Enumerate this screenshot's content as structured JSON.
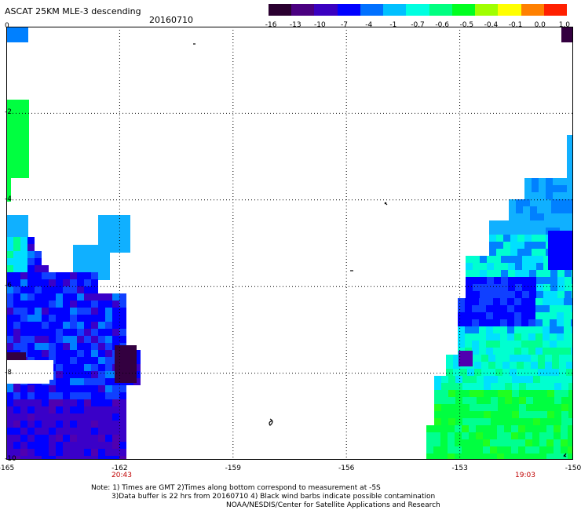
{
  "header": {
    "title": "ASCAT 25KM MLE-3 descending",
    "date": "20160710"
  },
  "colorbar": {
    "labels": [
      "-16",
      "-13",
      "-10",
      "-7",
      "-4",
      "-1",
      "-0.7",
      "-0.6",
      "-0.5",
      "-0.4",
      "-0.1",
      "0.0",
      "1.0"
    ],
    "colors": [
      "#2a0030",
      "#4a0080",
      "#3a00c0",
      "#0000ff",
      "#0070ff",
      "#00c0ff",
      "#00ffe0",
      "#00ff80",
      "#00ff20",
      "#a0ff00",
      "#ffff00",
      "#ff8000",
      "#ff2000"
    ]
  },
  "chart_data": {
    "type": "heatmap",
    "title": "ASCAT 25KM MLE-3 descending",
    "x_ticks": [
      "-165",
      "-162",
      "-159",
      "-156",
      "-153",
      "-150"
    ],
    "y_ticks": [
      "0",
      "-2",
      "-4",
      "-6",
      "-8",
      "-10"
    ],
    "xlim": [
      -165,
      -150
    ],
    "ylim": [
      -10,
      0
    ],
    "grid": true,
    "times": [
      {
        "label": "20:43",
        "lon": -162
      },
      {
        "label": "19:03",
        "lon": -151.5
      }
    ]
  },
  "notes": {
    "line1": "Note: 1) Times are GMT 2)Times along bottom correspond to measurement at -5S",
    "line2": "3)Data buffer is 22 hrs from 20160710 4) Black wind barbs indicate possible contamination",
    "line3": "NOAA/NESDIS/Center for Satellite Applications and Research"
  }
}
